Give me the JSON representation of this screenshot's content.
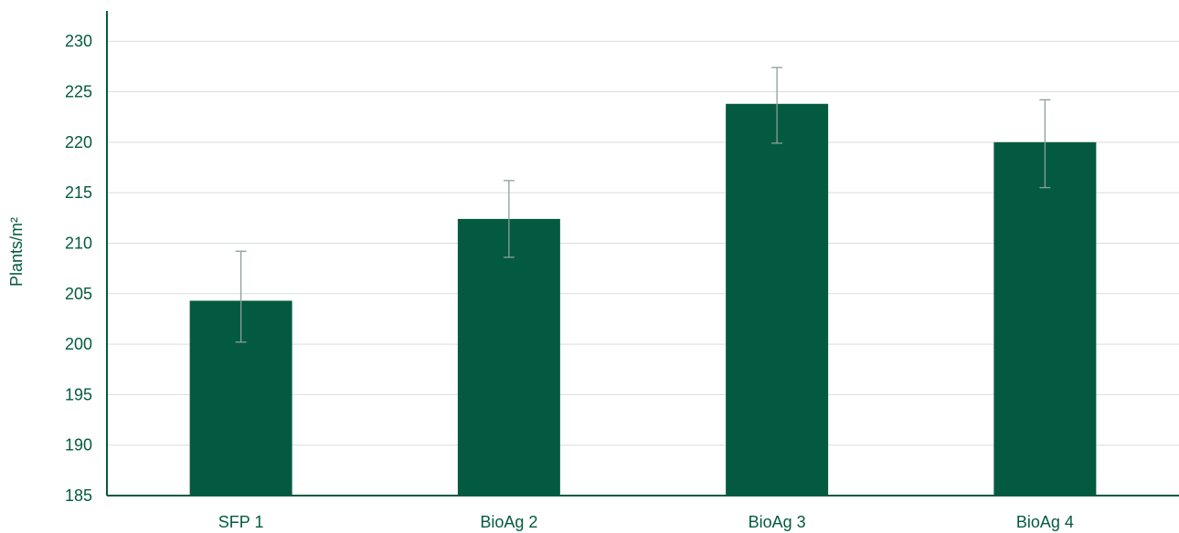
{
  "colors": {
    "bar": "#035a40",
    "axis": "#035a40",
    "text": "#035a40",
    "grid": "#d8dedb",
    "error_bar": "#8aa096"
  },
  "chart_data": {
    "type": "bar",
    "title": "",
    "xlabel": "",
    "ylabel": "Plants/m²",
    "categories": [
      "SFP 1",
      "BioAg 2",
      "BioAg 3",
      "BioAg 4"
    ],
    "values": [
      204.3,
      212.4,
      223.8,
      220.0
    ],
    "error_low": [
      200.2,
      208.6,
      219.9,
      215.5
    ],
    "error_high": [
      209.2,
      216.2,
      227.4,
      224.2
    ],
    "ylim": [
      185,
      233
    ],
    "yticks": [
      185,
      190,
      195,
      200,
      205,
      210,
      215,
      220,
      225,
      230
    ],
    "grid": true,
    "legend": "none"
  }
}
